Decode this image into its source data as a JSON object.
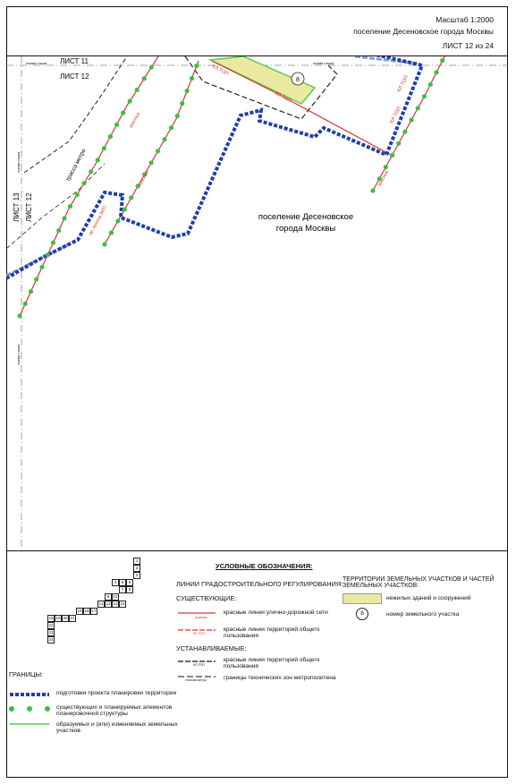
{
  "header": {
    "scale": "Масштаб 1:2000",
    "settlement": "поселение Десеновское города Москвы",
    "sheet": "ЛИСТ 12 из 24"
  },
  "map": {
    "sheet_labels": {
      "north": "ЛИСТ 11",
      "current_top": "ЛИСТ 12",
      "west": "ЛИСТ 13",
      "current_left": "ЛИСТ 12"
    },
    "junction_line": "линия стыка",
    "metro_route": "трасса метро",
    "red_line_short": "красные",
    "kl_top": "КЛ ТОП",
    "proezd": "пр. проезд 8037",
    "settlement_line1": "поселение Десеновское",
    "settlement_line2": "города Москвы",
    "parcel_number": "8"
  },
  "legend": {
    "title": "УСЛОВНЫЕ ОБОЗНАЧЕНИЯ:",
    "sheet_numbers": [
      "1",
      "2",
      "3",
      "4",
      "5",
      "6",
      "7",
      "8",
      "9",
      "10",
      "11",
      "12",
      "13",
      "14",
      "15",
      "16",
      "17",
      "18",
      "19",
      "20",
      "21",
      "22",
      "23",
      "24"
    ],
    "borders_heading": "ГРАНИЦЫ:",
    "border_items": [
      {
        "text": "подготовки проекта планировки территории"
      },
      {
        "text": "существующих и планируемых элементов планировочной структуры"
      },
      {
        "text": "образуемых и (или) изменяемых земельных участков"
      }
    ],
    "regulation_heading": "ЛИНИИ ГРАДОСТРОИТЕЛЬНОГО РЕГУЛИРОВАНИЯ:",
    "existing_heading": "СУЩЕСТВУЮЩИЕ:",
    "existing_items": [
      {
        "text": "красные линии улично-дорожной сети",
        "mark": "красные"
      },
      {
        "text": "красные линии территорий общего пользования",
        "mark": "КЛ ТОП"
      }
    ],
    "established_heading": "УСТАНАВЛИВАЕМЫЕ:",
    "established_items": [
      {
        "text": "красные линии территорий общего пользования",
        "mark": "КЛ ТОП"
      },
      {
        "text": "границы технических зон метрополитена",
        "mark": "техзона метро"
      }
    ],
    "parcels_heading": "ТЕРРИТОРИИ ЗЕМЕЛЬНЫХ УЧАСТКОВ И ЧАСТЕЙ ЗЕМЕЛЬНЫХ УЧАСТКОВ:",
    "parcel_items": [
      {
        "text": "нежилых зданий и сооружений"
      },
      {
        "text": "номер земельного участка",
        "mark": "8"
      }
    ]
  },
  "colors": {
    "red_line": "#e0302a",
    "blue_border": "#1f3fa8",
    "green_dot": "#3fbf3f",
    "green_line": "#56c956",
    "yellow_fill": "#e9eaa0"
  }
}
